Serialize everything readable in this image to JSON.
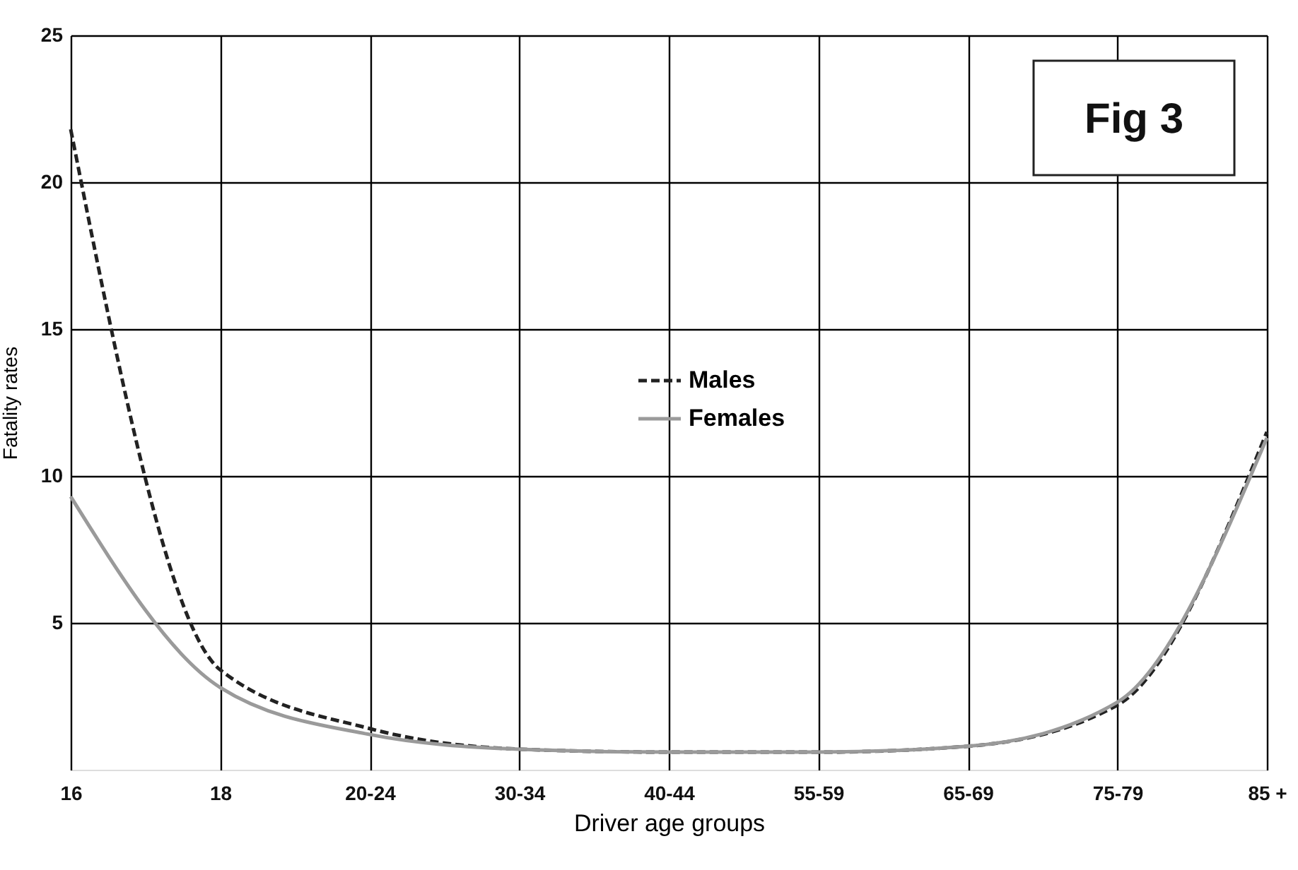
{
  "chart_data": {
    "type": "line",
    "xlabel": "Driver age groups",
    "ylabel": "Fatality rates",
    "categories": [
      "16",
      "18",
      "20-24",
      "30-34",
      "40-44",
      "55-59",
      "65-69",
      "75-79",
      "85 +"
    ],
    "series": [
      {
        "name": "Males",
        "color": "#222222",
        "line_style": "dashed",
        "values": [
          21.8,
          3.4,
          1.4,
          0.7,
          0.6,
          0.6,
          0.8,
          2.2,
          11.5
        ]
      },
      {
        "name": "Females",
        "color": "#9a9a9a",
        "line_style": "solid",
        "values": [
          9.3,
          2.8,
          1.2,
          0.7,
          0.6,
          0.6,
          0.8,
          2.3,
          11.3
        ]
      }
    ],
    "ylim": [
      0,
      25
    ],
    "yticks": [
      5,
      10,
      15,
      20,
      25
    ],
    "grid": true,
    "legend": "center",
    "marker": "none",
    "annotations": [
      "Fig 3"
    ]
  }
}
